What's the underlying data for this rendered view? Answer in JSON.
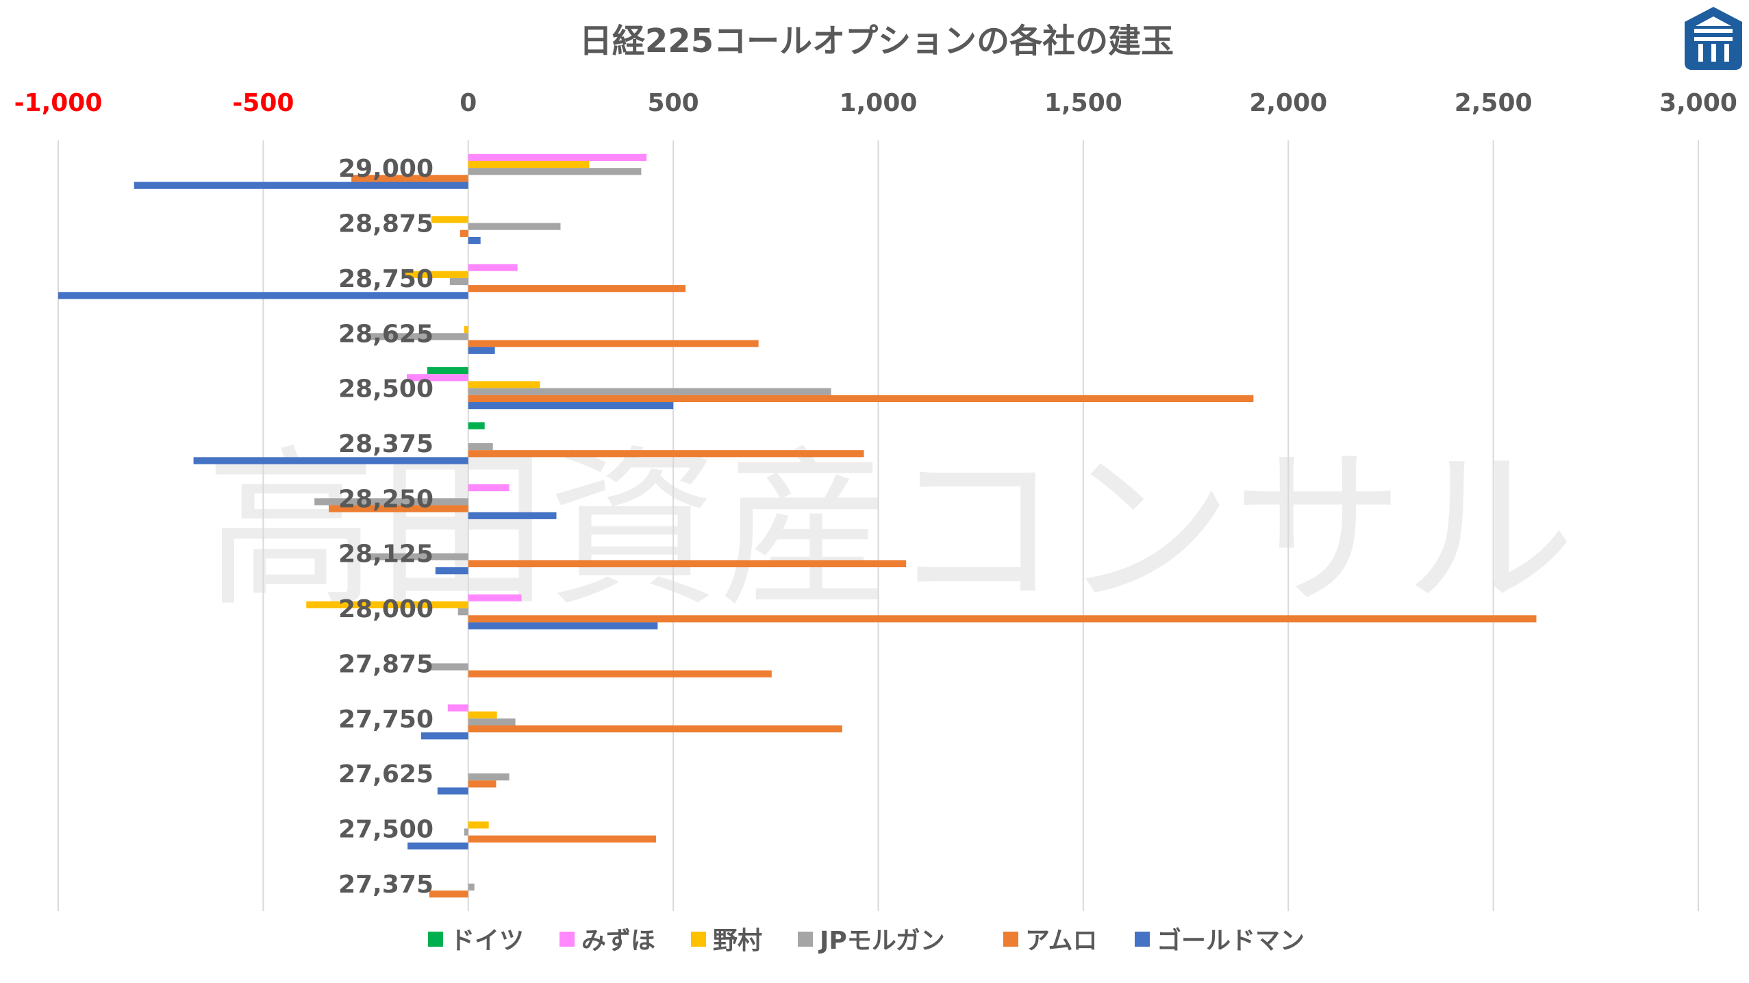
{
  "watermark": "高田資産コンサル",
  "logo": {
    "name": "building-logo-icon",
    "color": "#1f5e9e"
  },
  "chart_data": {
    "type": "bar",
    "orientation": "horizontal",
    "title": "日経225コールオプションの各社の建玉",
    "xlim": [
      -1000,
      3000
    ],
    "xticks": [
      -1000,
      -500,
      0,
      500,
      1000,
      1500,
      2000,
      2500,
      3000
    ],
    "xtick_labels": [
      "-1,000",
      "-500",
      "0",
      "500",
      "1,000",
      "1,500",
      "2,000",
      "2,500",
      "3,000"
    ],
    "negative_tick_color": "#ff0000",
    "positive_tick_color": "#595959",
    "x_axis_position": "top",
    "grid": true,
    "legend_position": "bottom",
    "categories": [
      "29,000",
      "28,875",
      "28,750",
      "28,625",
      "28,500",
      "28,375",
      "28,250",
      "28,125",
      "28,000",
      "27,875",
      "27,750",
      "27,625",
      "27,500",
      "27,375"
    ],
    "series": [
      {
        "name": "ドイツ",
        "color": "#00b050",
        "values": [
          0,
          0,
          0,
          0,
          -100,
          40,
          0,
          0,
          0,
          0,
          0,
          0,
          0,
          0
        ]
      },
      {
        "name": "みずほ",
        "color": "#ff88ff",
        "values": [
          435,
          0,
          120,
          0,
          -150,
          0,
          100,
          0,
          130,
          0,
          -50,
          0,
          0,
          0
        ]
      },
      {
        "name": "野村",
        "color": "#ffc000",
        "values": [
          295,
          -90,
          -155,
          -10,
          175,
          0,
          0,
          0,
          -395,
          0,
          70,
          0,
          50,
          0
        ]
      },
      {
        "name": "JPモルガン",
        "color": "#a5a5a5",
        "values": [
          422,
          225,
          -45,
          -245,
          885,
          60,
          -375,
          -248,
          -25,
          -95,
          115,
          100,
          -10,
          15
        ]
      },
      {
        "name": "アムロ",
        "color": "#ed7d31",
        "values": [
          -285,
          -20,
          530,
          708,
          1915,
          965,
          -340,
          1068,
          2605,
          740,
          912,
          68,
          458,
          -95
        ]
      },
      {
        "name": "ゴールドマン",
        "color": "#4472c4",
        "values": [
          -815,
          30,
          -1000,
          65,
          500,
          -670,
          215,
          -80,
          462,
          0,
          -115,
          -75,
          -148,
          0
        ]
      }
    ]
  }
}
